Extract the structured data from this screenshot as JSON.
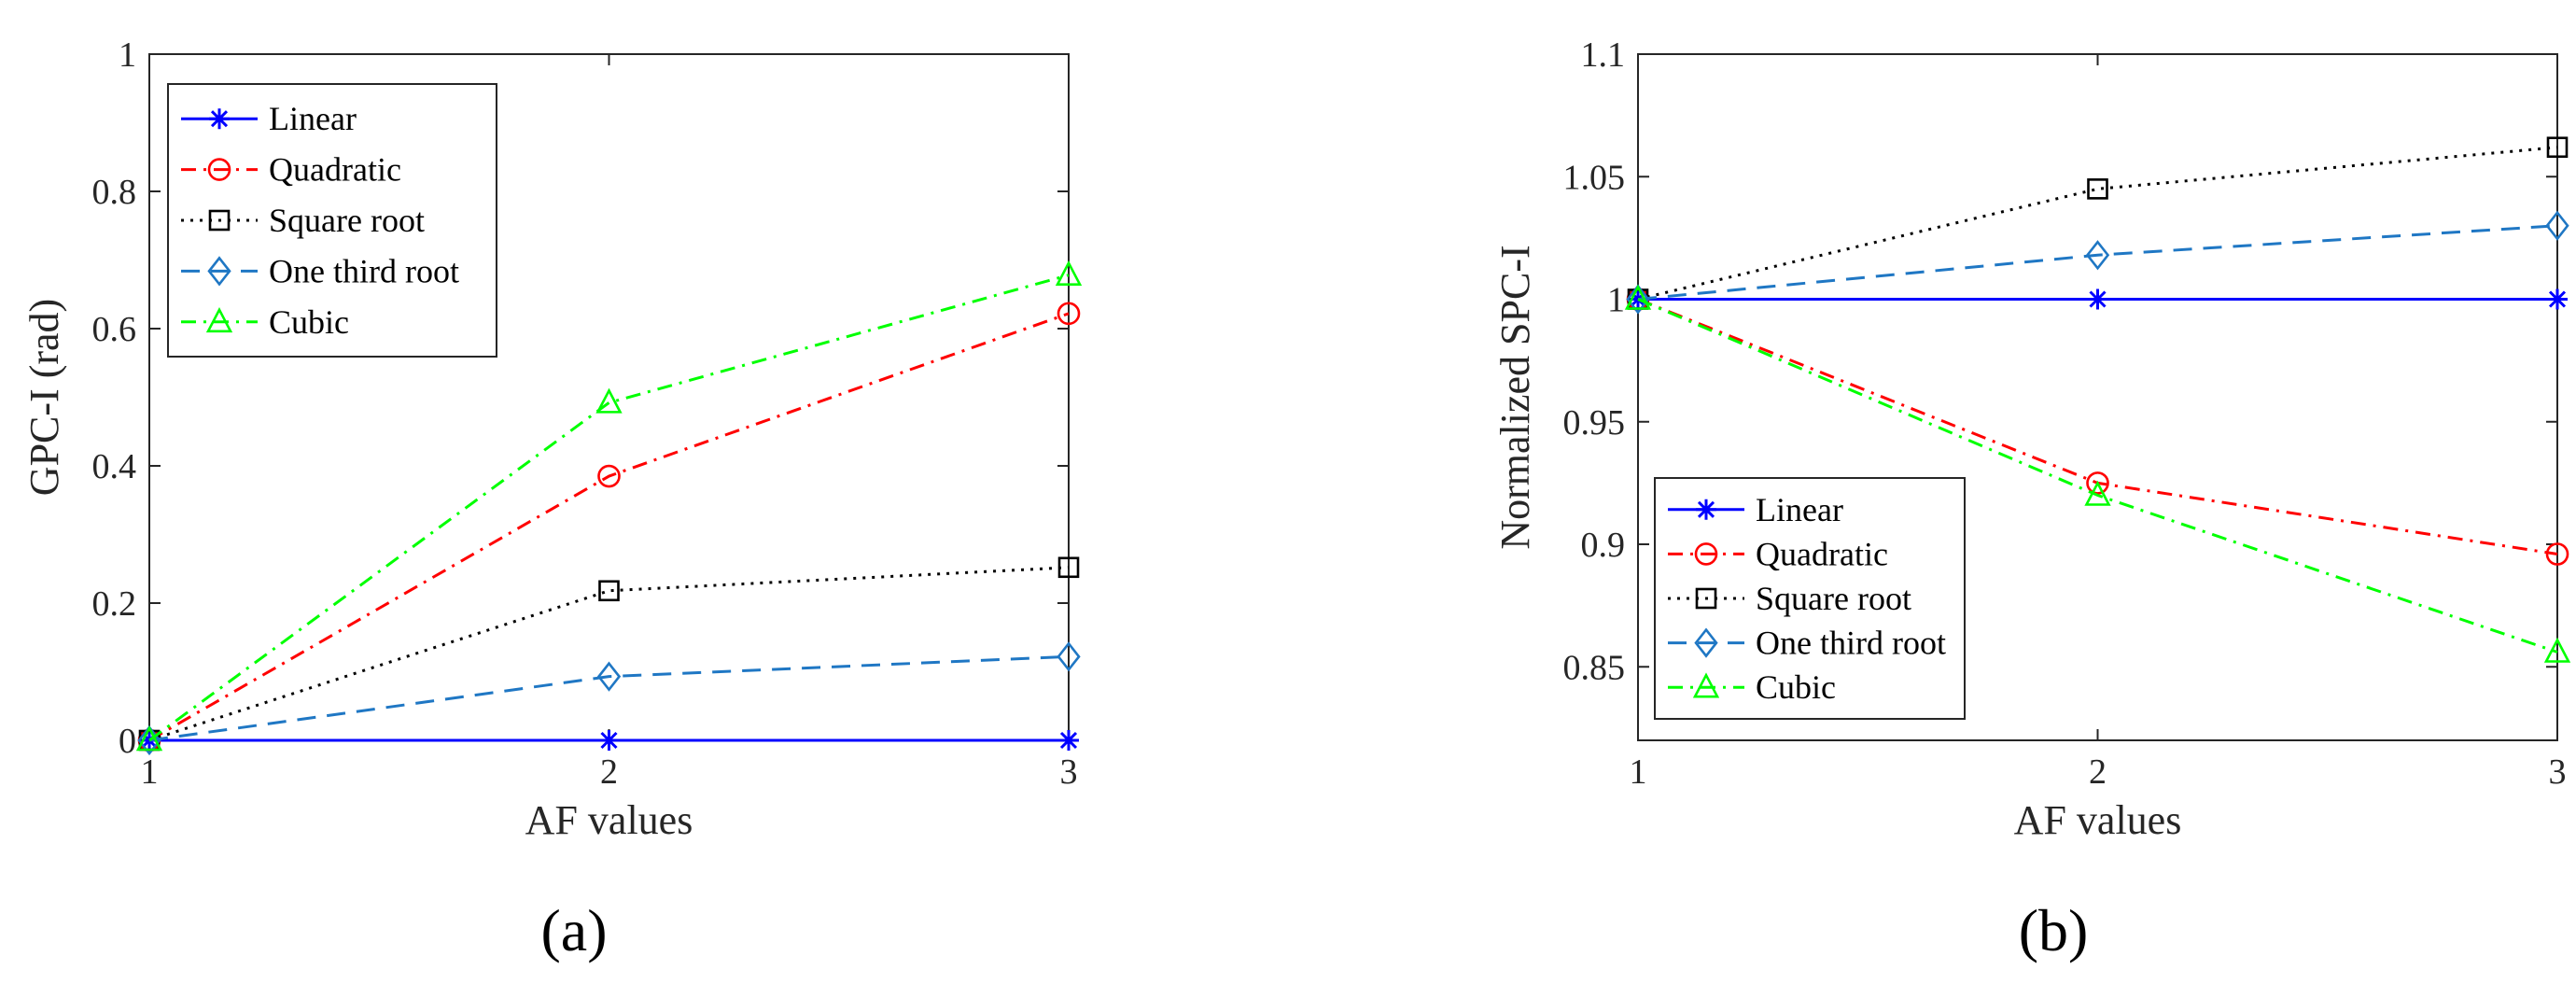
{
  "chart_data": [
    {
      "type": "line",
      "caption": "(a)",
      "xlabel": "AF values",
      "ylabel": "GPC-I (rad)",
      "x": [
        1,
        2,
        3
      ],
      "xlim": [
        1,
        3
      ],
      "ylim": [
        0,
        1
      ],
      "xticks": [
        1,
        2,
        3
      ],
      "yticks": [
        0,
        0.2,
        0.4,
        0.6,
        0.8,
        1
      ],
      "ytick_labels": [
        "0",
        "0.2",
        "0.4",
        "0.6",
        "0.8",
        "1"
      ],
      "legend_position": "top-left",
      "series": [
        {
          "name": "Linear",
          "values": [
            0,
            0,
            0
          ],
          "color": "#0000ff",
          "dash": "solid",
          "marker": "asterisk"
        },
        {
          "name": "Quadratic",
          "values": [
            0,
            0.385,
            0.622
          ],
          "color": "#ff0000",
          "dash": "dashdot",
          "marker": "circle"
        },
        {
          "name": "Square root",
          "values": [
            0,
            0.218,
            0.252
          ],
          "color": "#000000",
          "dash": "dotted",
          "marker": "square"
        },
        {
          "name": "One third root",
          "values": [
            0,
            0.093,
            0.122
          ],
          "color": "#1f77c4",
          "dash": "dashed",
          "marker": "diamond"
        },
        {
          "name": "Cubic",
          "values": [
            0,
            0.492,
            0.678
          ],
          "color": "#00ff00",
          "dash": "dashdot",
          "marker": "triangle"
        }
      ]
    },
    {
      "type": "line",
      "caption": "(b)",
      "xlabel": "AF values",
      "ylabel": "Normalized SPC-I",
      "x": [
        1,
        2,
        3
      ],
      "xlim": [
        1,
        3
      ],
      "ylim": [
        0.82,
        1.1
      ],
      "xticks": [
        1,
        2,
        3
      ],
      "yticks": [
        0.85,
        0.9,
        0.95,
        1,
        1.05,
        1.1
      ],
      "ytick_labels": [
        "0.85",
        "0.9",
        "0.95",
        "1",
        "1.05",
        "1.1"
      ],
      "legend_position": "bottom-left",
      "series": [
        {
          "name": "Linear",
          "values": [
            1,
            1,
            1
          ],
          "color": "#0000ff",
          "dash": "solid",
          "marker": "asterisk"
        },
        {
          "name": "Quadratic",
          "values": [
            1,
            0.925,
            0.896
          ],
          "color": "#ff0000",
          "dash": "dashdot",
          "marker": "circle"
        },
        {
          "name": "Square root",
          "values": [
            1,
            1.045,
            1.062
          ],
          "color": "#000000",
          "dash": "dotted",
          "marker": "square"
        },
        {
          "name": "One third root",
          "values": [
            1,
            1.018,
            1.03
          ],
          "color": "#1f77c4",
          "dash": "dashed",
          "marker": "diamond"
        },
        {
          "name": "Cubic",
          "values": [
            1,
            0.92,
            0.856
          ],
          "color": "#00ff00",
          "dash": "dashdot",
          "marker": "triangle"
        }
      ]
    }
  ]
}
